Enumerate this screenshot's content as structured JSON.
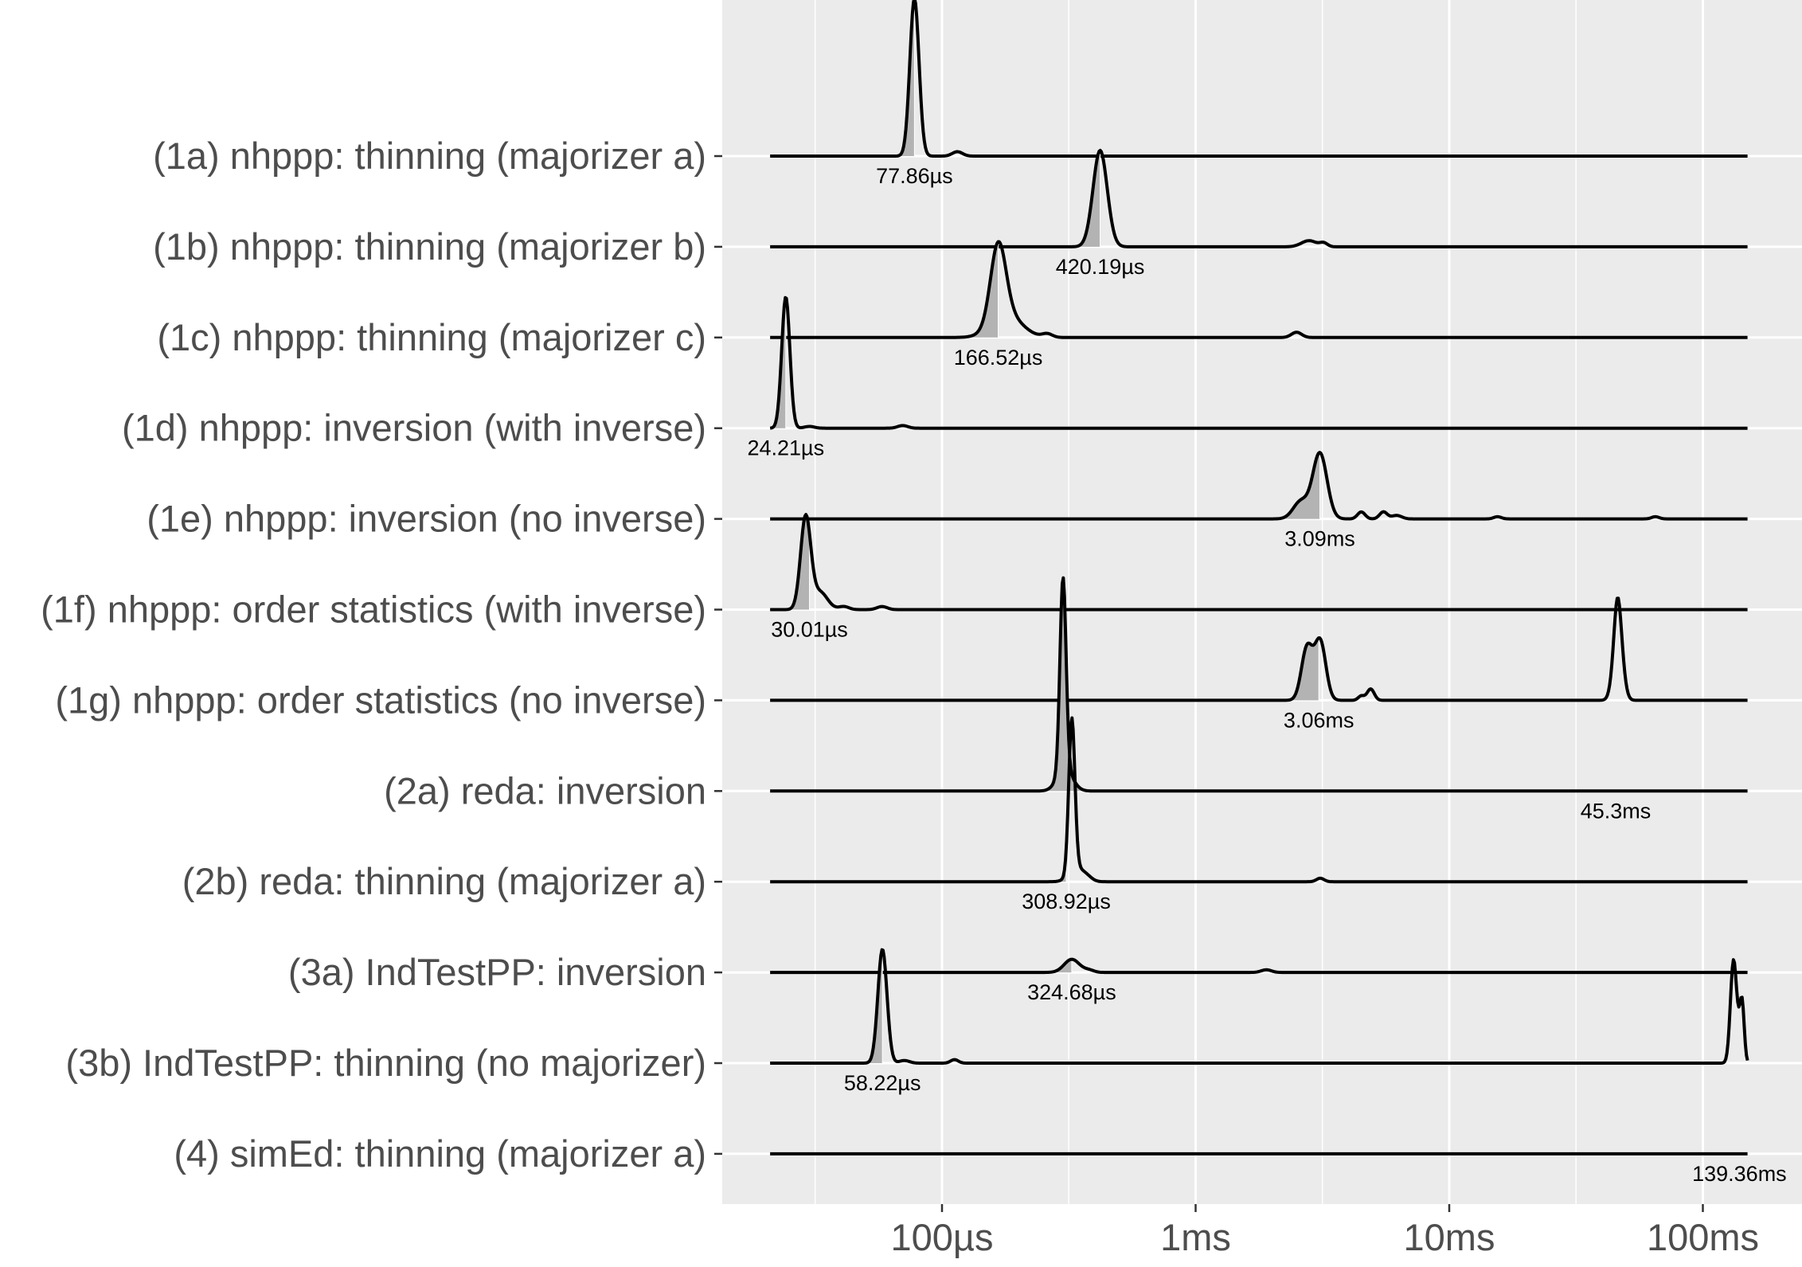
{
  "chart_data": {
    "type": "ridgeline",
    "x_scale": "log",
    "x_unit": "seconds",
    "xlim": [
      1e-05,
      0.23
    ],
    "x_ticks": [
      {
        "value": 0.0001,
        "label": "100µs"
      },
      {
        "value": 0.001,
        "label": "1ms"
      },
      {
        "value": 0.01,
        "label": "10ms"
      },
      {
        "value": 0.1,
        "label": "100ms"
      }
    ],
    "x_minor_ticks": [
      3.16e-05,
      0.000316,
      0.00316,
      0.0316
    ],
    "grid": true,
    "panel_color": "#ebebeb",
    "grid_color": "#ffffff",
    "fill_color": "#b3b3b3",
    "line_color": "#000000",
    "series": [
      {
        "name": "(1a) nhppp: thinning (majorizer a)",
        "min": 2.1e-05,
        "max": 0.15,
        "median": 7.786e-05,
        "median_label": "77.86µs",
        "peaks": [
          [
            7.786e-05,
            1.8,
            0.018
          ],
          [
            0.000115,
            0.05,
            0.02
          ]
        ]
      },
      {
        "name": "(1b) nhppp: thinning (majorizer b)",
        "min": 2.1e-05,
        "max": 0.15,
        "median": 0.00042019,
        "median_label": "420.19µs",
        "peaks": [
          [
            0.00042019,
            1.1,
            0.028
          ],
          [
            0.0028,
            0.07,
            0.03
          ],
          [
            0.0032,
            0.04,
            0.015
          ]
        ]
      },
      {
        "name": "(1c) nhppp: thinning (majorizer c)",
        "min": 2.1e-05,
        "max": 0.15,
        "median": 0.00016652,
        "median_label": "166.52µs",
        "peaks": [
          [
            0.00016652,
            0.88,
            0.03
          ],
          [
            0.00018,
            0.25,
            0.06
          ],
          [
            0.00026,
            0.04,
            0.02
          ],
          [
            0.0025,
            0.06,
            0.02
          ]
        ]
      },
      {
        "name": "(1d) nhppp: inversion (with inverse)",
        "min": 2.1e-05,
        "max": 0.15,
        "median": 2.421e-05,
        "median_label": "24.21µs",
        "peaks": [
          [
            2.421e-05,
            1.5,
            0.016
          ],
          [
            3e-05,
            0.02,
            0.02
          ],
          [
            7e-05,
            0.03,
            0.02
          ]
        ]
      },
      {
        "name": "(1e) nhppp: inversion (no inverse)",
        "min": 2.1e-05,
        "max": 0.15,
        "median": 0.00309,
        "median_label": "3.09ms",
        "peaks": [
          [
            0.00309,
            0.75,
            0.028
          ],
          [
            0.0026,
            0.2,
            0.03
          ],
          [
            0.0045,
            0.08,
            0.015
          ],
          [
            0.0055,
            0.08,
            0.015
          ],
          [
            0.0062,
            0.04,
            0.02
          ],
          [
            0.0155,
            0.025,
            0.015
          ],
          [
            0.065,
            0.025,
            0.015
          ]
        ]
      },
      {
        "name": "(1f) nhppp: order statistics (with inverse)",
        "min": 2.1e-05,
        "max": 0.15,
        "median": 3.001e-05,
        "median_label": "30.01µs",
        "peaks": [
          [
            2.9e-05,
            1.05,
            0.02
          ],
          [
            3.3e-05,
            0.2,
            0.03
          ],
          [
            4.1e-05,
            0.035,
            0.02
          ],
          [
            5.8e-05,
            0.035,
            0.02
          ]
        ]
      },
      {
        "name": "(1g) nhppp: order statistics (no inverse)",
        "min": 2.1e-05,
        "max": 0.15,
        "median": 0.00306,
        "median_label": "3.06ms",
        "peaks": [
          [
            0.0031,
            0.67,
            0.022
          ],
          [
            0.00275,
            0.6,
            0.022
          ],
          [
            0.0045,
            0.05,
            0.012
          ],
          [
            0.0049,
            0.13,
            0.014
          ],
          [
            0.046,
            0.28,
            0.012
          ],
          [
            0.0463,
            0.9,
            0.018
          ]
        ]
      },
      {
        "name": "(2a) reda: inversion",
        "min": 2.1e-05,
        "max": 0.15,
        "median": 0.0453,
        "median_label": "45.3ms",
        "peaks": [
          [
            0.0003,
            2.2,
            0.012
          ],
          [
            0.000305,
            0.25,
            0.03
          ]
        ]
      },
      {
        "name": "(2b) reda: thinning (majorizer a)",
        "min": 2.1e-05,
        "max": 0.15,
        "median": 0.00030892,
        "median_label": "308.92µs",
        "peaks": [
          [
            0.000325,
            1.75,
            0.012
          ],
          [
            0.00034,
            0.15,
            0.03
          ],
          [
            0.000375,
            0.03,
            0.02
          ],
          [
            0.0031,
            0.04,
            0.015
          ]
        ]
      },
      {
        "name": "(3a) IndTestPP: inversion",
        "min": 2.1e-05,
        "max": 0.15,
        "median": 0.00032468,
        "median_label": "324.68µs",
        "peaks": [
          [
            0.000325,
            0.15,
            0.03
          ],
          [
            0.00038,
            0.025,
            0.02
          ],
          [
            0.0019,
            0.03,
            0.02
          ]
        ]
      },
      {
        "name": "(3b) IndTestPP: thinning (no majorizer)",
        "min": 2.1e-05,
        "max": 0.15,
        "median": 5.822e-05,
        "median_label": "58.22µs",
        "peaks": [
          [
            5.822e-05,
            1.3,
            0.018
          ],
          [
            7.1e-05,
            0.03,
            0.02
          ],
          [
            0.000112,
            0.04,
            0.015
          ],
          [
            0.132,
            1.15,
            0.012
          ],
          [
            0.14,
            0.3,
            0.012
          ],
          [
            0.143,
            0.5,
            0.008
          ]
        ]
      },
      {
        "name": "(4) simEd: thinning (majorizer a)",
        "min": 2.1e-05,
        "max": 0.15,
        "median": 0.13936,
        "median_label": "139.36ms",
        "peaks": []
      }
    ]
  }
}
